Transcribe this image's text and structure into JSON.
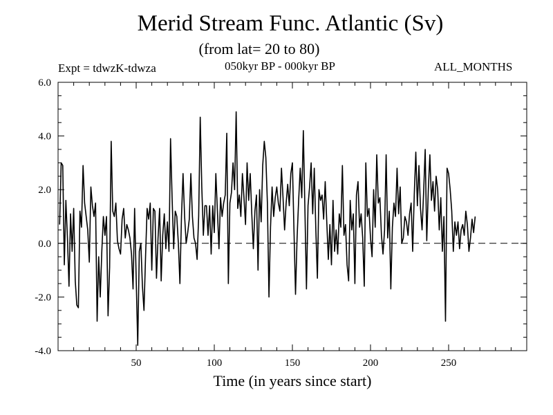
{
  "chart_data": {
    "type": "line",
    "title": "Merid Stream Func. Atlantic (Sv)",
    "subtitle": "(from lat= 20 to 80)",
    "experiment": "Expt = tdwzK-tdwza",
    "period": "050kyr BP - 000kyr BP",
    "months": "ALL_MONTHS",
    "xlabel": "Time (in years since start)",
    "ylabel": "",
    "xlim": [
      0,
      300
    ],
    "ylim": [
      -4.0,
      6.0
    ],
    "x_ticks": [
      50,
      100,
      150,
      200,
      250
    ],
    "x_tick_labels": [
      "50",
      "100",
      "150",
      "200",
      "250"
    ],
    "y_ticks": [
      -4,
      -2,
      0,
      2,
      4,
      6
    ],
    "y_tick_labels": [
      "-4.0",
      "-2.0",
      "0.0",
      "2.0",
      "4.0",
      "6.0"
    ],
    "zero_line": {
      "value": 0.0,
      "style": "dashed"
    },
    "grid": false,
    "series": [
      {
        "x_start": 1,
        "x_step": 1,
        "values": [
          0.7,
          3.0,
          2.9,
          -0.8,
          1.6,
          0.2,
          -1.6,
          1.1,
          -0.3,
          1.3,
          -1.4,
          -2.3,
          -2.4,
          1.2,
          0.6,
          2.9,
          1.5,
          1.0,
          0.5,
          -0.7,
          2.1,
          1.4,
          1.0,
          1.5,
          -2.9,
          -0.5,
          -2.0,
          -0.3,
          1.0,
          0.3,
          1.0,
          -2.7,
          -0.9,
          3.8,
          1.2,
          1.0,
          1.5,
          0.1,
          -0.2,
          -0.4,
          0.9,
          1.3,
          0.2,
          0.7,
          0.5,
          0.2,
          -0.4,
          -1.7,
          1.3,
          -1.3,
          -3.8,
          -0.3,
          0.0,
          -1.6,
          -2.5,
          -0.5,
          1.3,
          0.9,
          1.5,
          -1.0,
          1.3,
          1.2,
          -1.3,
          0.2,
          1.3,
          -1.4,
          0.3,
          1.1,
          -0.2,
          0.8,
          -0.3,
          3.9,
          1.7,
          -0.2,
          1.2,
          1.0,
          0.0,
          -1.5,
          1.0,
          2.6,
          1.0,
          0.0,
          0.4,
          0.9,
          2.6,
          1.0,
          0.2,
          0.0,
          -0.6,
          1.0,
          4.7,
          2.1,
          0.3,
          1.4,
          1.4,
          0.3,
          1.4,
          -0.4,
          1.4,
          0.4,
          2.6,
          1.2,
          -0.2,
          1.7,
          1.0,
          1.5,
          1.8,
          4.1,
          -1.5,
          1.5,
          1.9,
          3.0,
          2.0,
          4.9,
          1.3,
          1.8,
          1.0,
          2.6,
          1.7,
          0.7,
          3.0,
          1.6,
          2.6,
          1.1,
          -0.2,
          1.2,
          1.8,
          -1.0,
          2.0,
          0.8,
          2.9,
          3.8,
          3.2,
          1.5,
          -2.0,
          0.6,
          2.1,
          1.0,
          1.7,
          2.1,
          1.5,
          1.2,
          2.8,
          1.7,
          0.5,
          1.5,
          2.2,
          1.4,
          2.6,
          3.0,
          0.5,
          -1.9,
          0.2,
          1.6,
          2.8,
          1.7,
          4.2,
          1.3,
          -1.7,
          1.4,
          2.1,
          3.0,
          1.1,
          2.8,
          0.5,
          -1.3,
          2.0,
          1.6,
          1.8,
          0.9,
          2.3,
          0.8,
          -0.6,
          0.7,
          -0.8,
          1.6,
          -0.3,
          0.5,
          -0.4,
          1.1,
          0.6,
          2.9,
          0.3,
          0.7,
          -0.8,
          -1.4,
          1.6,
          0.5,
          1.1,
          -1.5,
          1.8,
          2.3,
          0.6,
          1.1,
          0.2,
          -1.6,
          3.0,
          1.0,
          1.3,
          0.2,
          -0.5,
          2.0,
          0.6,
          3.3,
          1.5,
          1.7,
          0.3,
          -0.4,
          0.5,
          3.3,
          0.2,
          1.2,
          -1.7,
          0.6,
          1.5,
          1.0,
          2.8,
          1.1,
          2.1,
          0.0,
          0.2,
          1.0,
          0.8,
          0.3,
          1.1,
          1.5,
          -0.3,
          1.8,
          3.4,
          1.4,
          2.9,
          1.3,
          0.5,
          1.9,
          3.5,
          0.1,
          2.0,
          3.3,
          1.6,
          2.3,
          1.2,
          2.5,
          2.0,
          0.5,
          1.7,
          -0.3,
          1.0,
          -2.9,
          2.8,
          2.6,
          2.0,
          1.2,
          -0.3,
          0.8,
          0.3,
          0.8,
          -0.2,
          0.5,
          0.7,
          0.3,
          1.2,
          0.7,
          -0.3,
          0.2,
          0.9,
          0.4,
          1.0
        ]
      }
    ]
  }
}
